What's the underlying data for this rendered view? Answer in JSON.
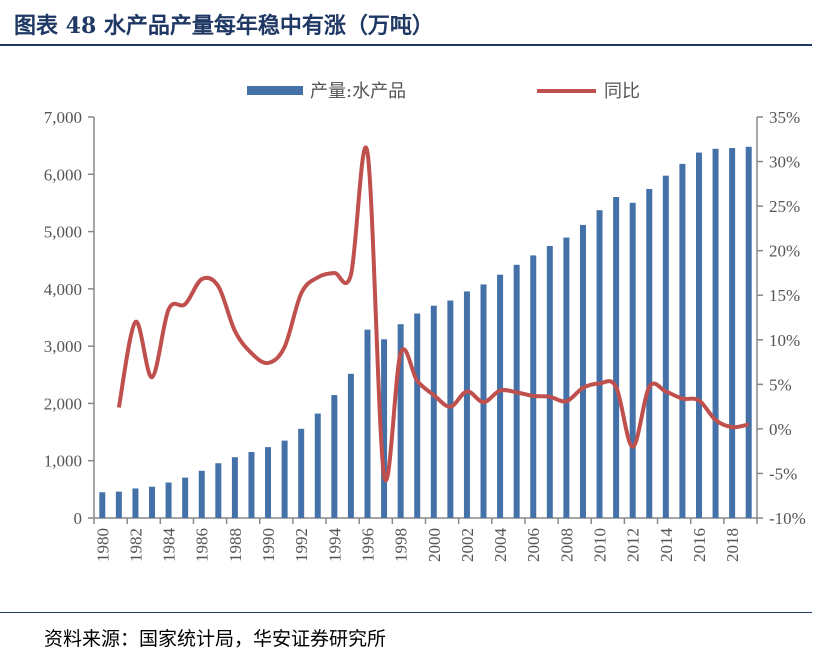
{
  "title": "图表 48 水产品产量每年稳中有涨（万吨）",
  "source": "资料来源：国家统计局，华安证券研究所",
  "colors": {
    "bar": "#4472a8",
    "line": "#c0504d",
    "title": "#1f3864"
  },
  "chart_data": {
    "type": "bar+line",
    "categories": [
      1980,
      1981,
      1982,
      1983,
      1984,
      1985,
      1986,
      1987,
      1988,
      1989,
      1990,
      1991,
      1992,
      1993,
      1994,
      1995,
      1996,
      1997,
      1998,
      1999,
      2000,
      2001,
      2002,
      2003,
      2004,
      2005,
      2006,
      2007,
      2008,
      2009,
      2010,
      2011,
      2012,
      2013,
      2014,
      2015,
      2016,
      2017,
      2018,
      2019
    ],
    "x_tick_labels": [
      "1980",
      "1982",
      "1984",
      "1986",
      "1988",
      "1990",
      "1992",
      "1994",
      "1996",
      "1998",
      "2000",
      "2002",
      "2004",
      "2006",
      "2008",
      "2010",
      "2012",
      "2014",
      "2016",
      "2018"
    ],
    "legend_position": "top",
    "series": [
      {
        "name": "产量:水产品",
        "type": "bar",
        "axis": "left",
        "values": [
          450,
          461,
          516,
          546,
          619,
          705,
          824,
          956,
          1061,
          1152,
          1237,
          1351,
          1557,
          1823,
          2146,
          2517,
          3288,
          3120,
          3383,
          3570,
          3706,
          3796,
          3955,
          4077,
          4247,
          4420,
          4584,
          4748,
          4896,
          5116,
          5373,
          5603,
          5502,
          5744,
          5976,
          6182,
          6379,
          6445,
          6458,
          6480
        ]
      },
      {
        "name": "同比",
        "type": "line",
        "axis": "right",
        "values": [
          null,
          2.4,
          12.0,
          5.8,
          13.4,
          14.0,
          16.8,
          16.0,
          11.0,
          8.5,
          7.4,
          9.2,
          15.2,
          17.0,
          17.5,
          17.3,
          31.0,
          -5.2,
          8.5,
          5.4,
          3.8,
          2.5,
          4.2,
          3.0,
          4.3,
          4.1,
          3.7,
          3.6,
          3.1,
          4.6,
          5.1,
          4.7,
          -2.0,
          4.7,
          4.2,
          3.4,
          3.2,
          1.0,
          0.2,
          0.5
        ]
      }
    ],
    "y_left": {
      "ylim": [
        0,
        7000
      ],
      "ticks": [
        "0",
        "1,000",
        "2,000",
        "3,000",
        "4,000",
        "5,000",
        "6,000",
        "7,000"
      ]
    },
    "y_right": {
      "ylim": [
        -10,
        35
      ],
      "ticks": [
        "-10%",
        "-5%",
        "0%",
        "5%",
        "10%",
        "15%",
        "20%",
        "25%",
        "30%",
        "35%"
      ]
    },
    "grid": false
  }
}
